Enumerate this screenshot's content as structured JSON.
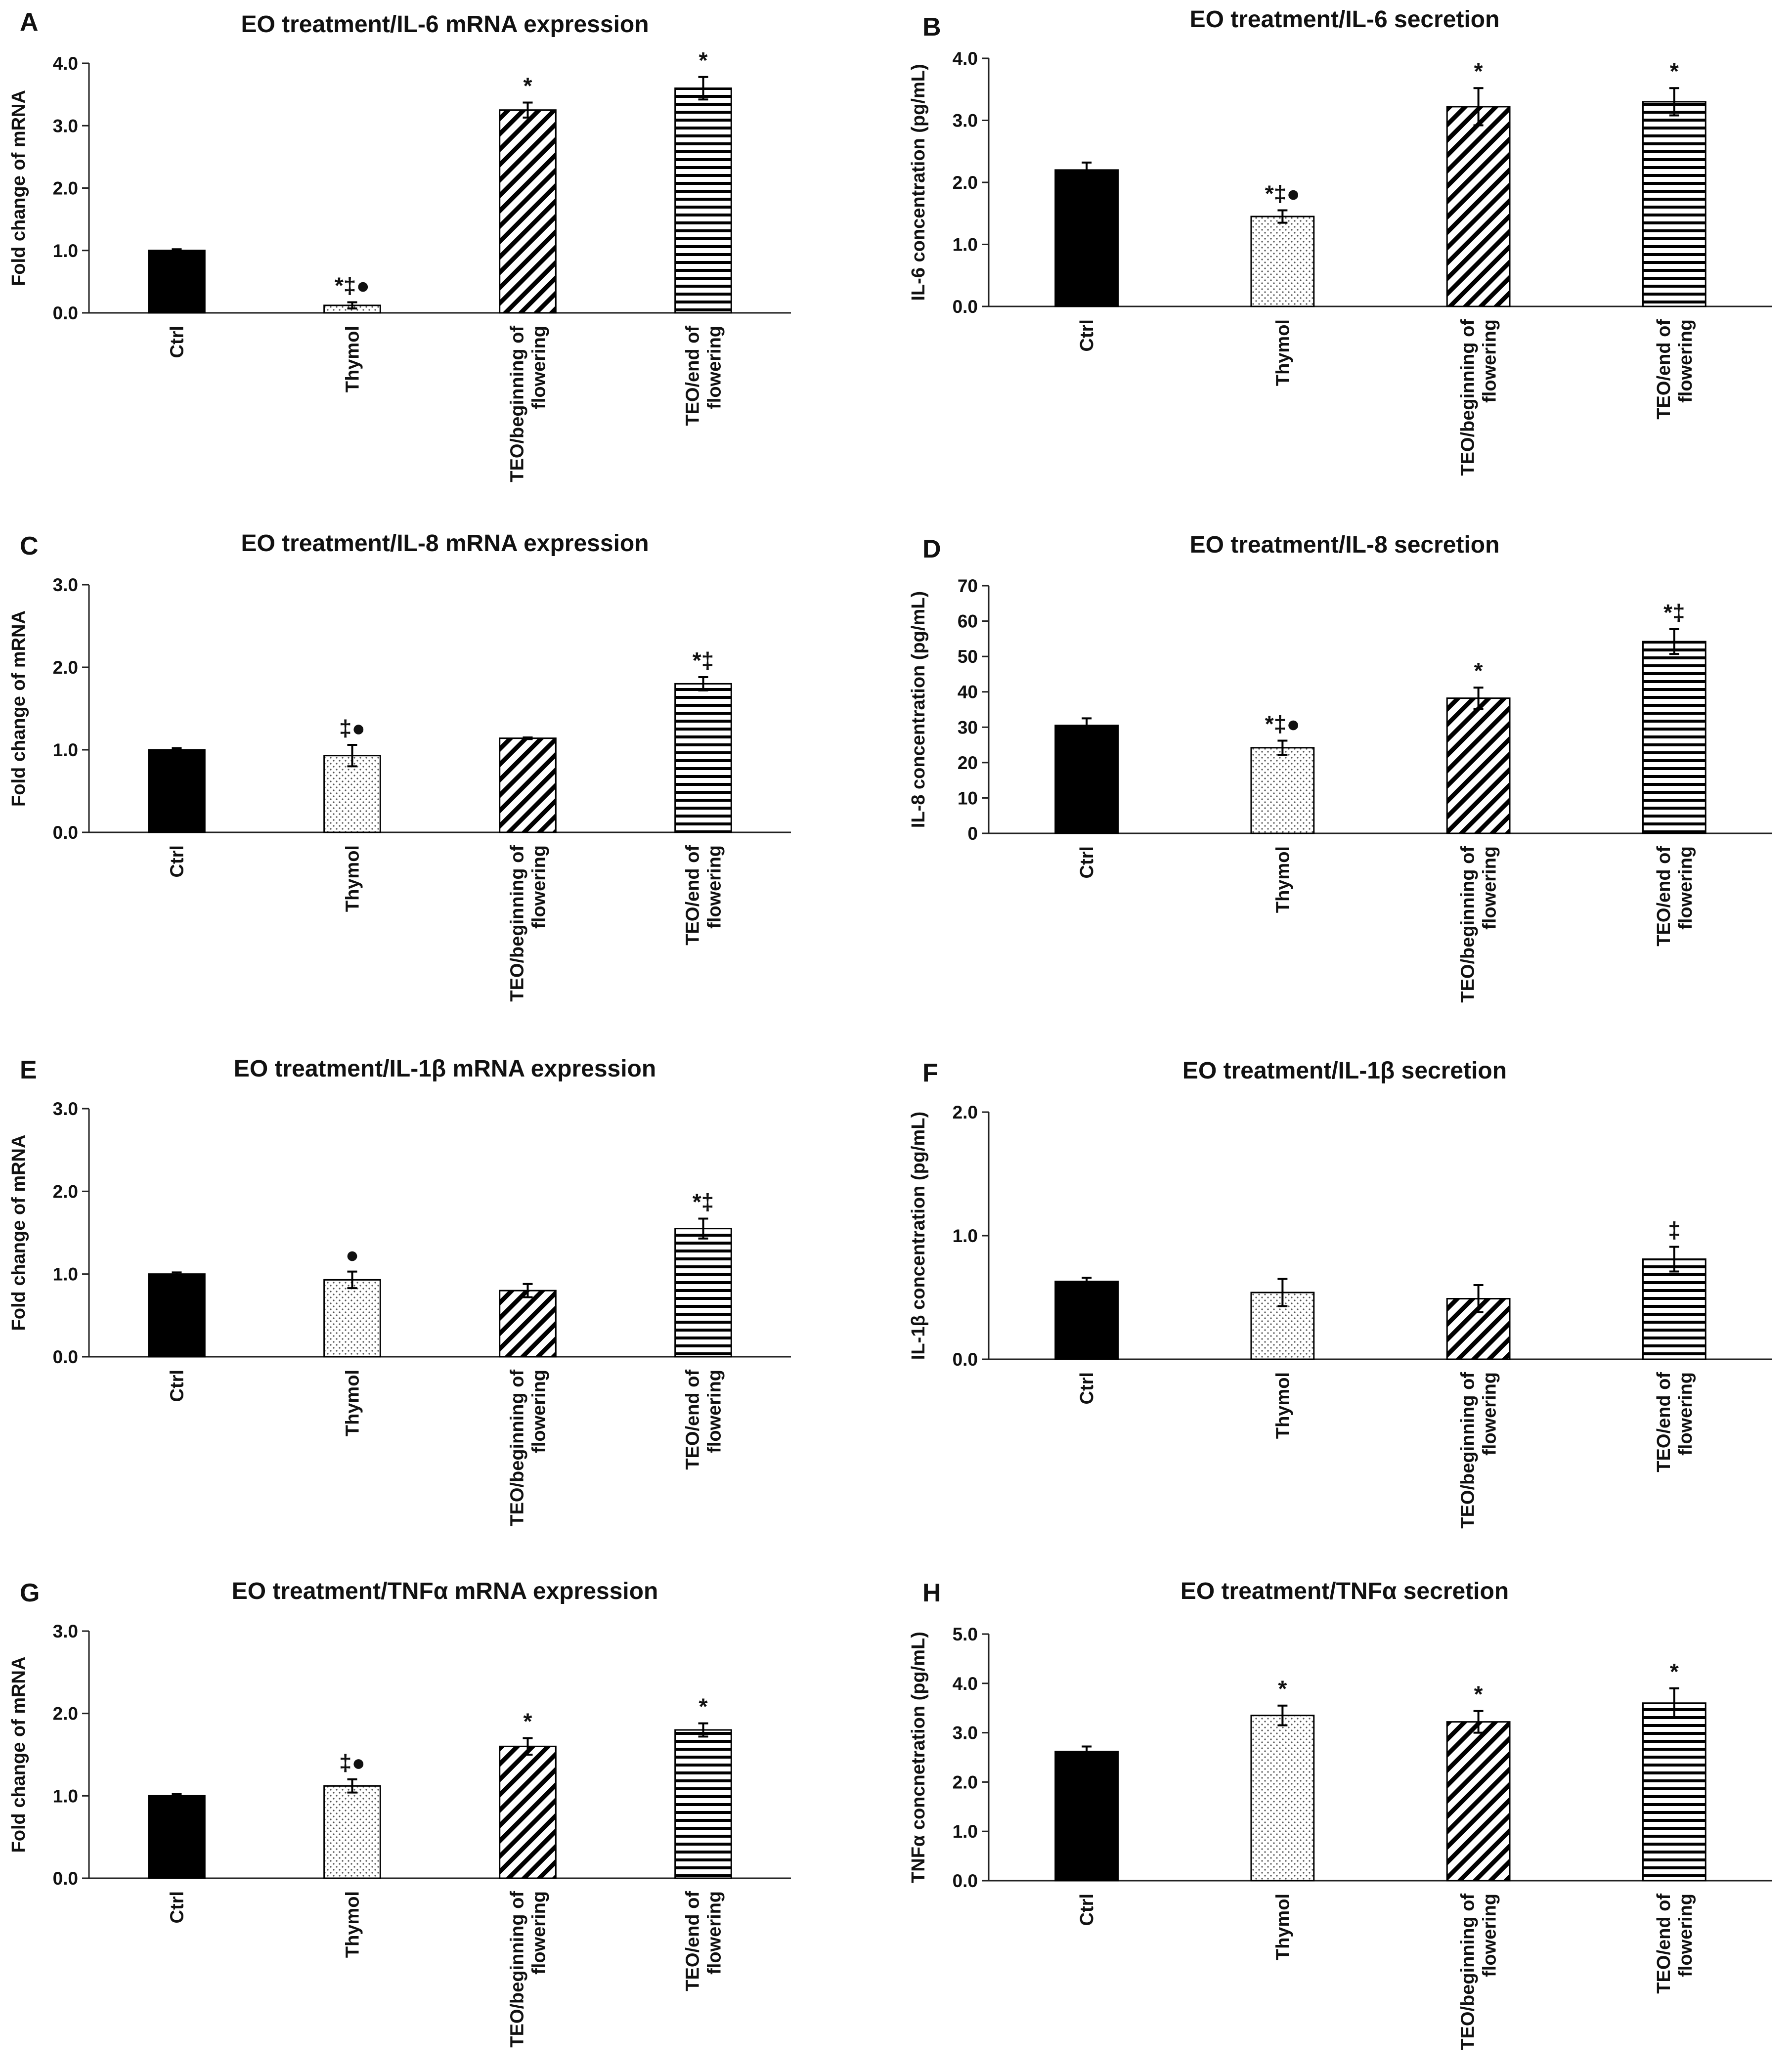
{
  "figure": {
    "panels": [
      {
        "letter": "A",
        "title": "EO treatment/IL-6 mRNA expression",
        "ylabel": "Fold change of mRNA",
        "ymax": 4.0,
        "ystep": 1.0,
        "decimals": 1,
        "categories": [
          [
            "Ctrl"
          ],
          [
            "Thymol"
          ],
          [
            "TEO/beginning of",
            "flowering"
          ],
          [
            "TEO/end of",
            "flowering"
          ]
        ],
        "values": [
          1.0,
          0.12,
          3.25,
          3.6
        ],
        "errors": [
          0.02,
          0.05,
          0.12,
          0.18
        ],
        "annotations": [
          "",
          "*‡●",
          "*",
          "*"
        ]
      },
      {
        "letter": "B",
        "title": "EO treatment/IL-6 secretion",
        "ylabel": "IL-6 concentration (pg/mL)",
        "ymax": 4.0,
        "ystep": 1.0,
        "decimals": 1,
        "categories": [
          [
            "Ctrl"
          ],
          [
            "Thymol"
          ],
          [
            "TEO/beginning of",
            "flowering"
          ],
          [
            "TEO/end of",
            "flowering"
          ]
        ],
        "values": [
          2.2,
          1.45,
          3.22,
          3.3
        ],
        "errors": [
          0.12,
          0.1,
          0.3,
          0.22
        ],
        "annotations": [
          "",
          "*‡●",
          "*",
          "*"
        ]
      },
      {
        "letter": "C",
        "title": "EO treatment/IL-8 mRNA expression",
        "ylabel": "Fold change of mRNA",
        "ymax": 3.0,
        "ystep": 1.0,
        "decimals": 1,
        "categories": [
          [
            "Ctrl"
          ],
          [
            "Thymol"
          ],
          [
            "TEO/beginning of",
            "flowering"
          ],
          [
            "TEO/end of",
            "flowering"
          ]
        ],
        "values": [
          1.0,
          0.93,
          1.14,
          1.8
        ],
        "errors": [
          0.02,
          0.13,
          0.01,
          0.08
        ],
        "annotations": [
          "",
          "‡●",
          "",
          "*‡"
        ]
      },
      {
        "letter": "D",
        "title": "EO treatment/IL-8 secretion",
        "ylabel": "IL-8 concentration (pg/mL)",
        "ymax": 70,
        "ystep": 10,
        "decimals": 0,
        "categories": [
          [
            "Ctrl"
          ],
          [
            "Thymol"
          ],
          [
            "TEO/beginning of",
            "flowering"
          ],
          [
            "TEO/end of",
            "flowering"
          ]
        ],
        "values": [
          30.5,
          24.2,
          38.2,
          54.2
        ],
        "errors": [
          2.0,
          2.0,
          3.0,
          3.5
        ],
        "annotations": [
          "",
          "*‡●",
          "*",
          "*‡"
        ]
      },
      {
        "letter": "E",
        "title": "EO treatment/IL-1β mRNA expression",
        "ylabel": "Fold change of mRNA",
        "ymax": 3.0,
        "ystep": 1.0,
        "decimals": 1,
        "categories": [
          [
            "Ctrl"
          ],
          [
            "Thymol"
          ],
          [
            "TEO/beginning of",
            "flowering"
          ],
          [
            "TEO/end of",
            "flowering"
          ]
        ],
        "values": [
          1.0,
          0.93,
          0.8,
          1.55
        ],
        "errors": [
          0.02,
          0.1,
          0.08,
          0.12
        ],
        "annotations": [
          "",
          "●",
          "",
          "*‡"
        ]
      },
      {
        "letter": "F",
        "title": "EO treatment/IL-1β secretion",
        "ylabel": "IL-1β concentration (pg/mL)",
        "ymax": 2.0,
        "ystep": 1.0,
        "decimals": 1,
        "categories": [
          [
            "Ctrl"
          ],
          [
            "Thymol"
          ],
          [
            "TEO/beginning of",
            "flowering"
          ],
          [
            "TEO/end of",
            "flowering"
          ]
        ],
        "values": [
          0.63,
          0.54,
          0.49,
          0.81
        ],
        "errors": [
          0.03,
          0.11,
          0.11,
          0.1
        ],
        "annotations": [
          "",
          "",
          "",
          "‡"
        ]
      },
      {
        "letter": "G",
        "title": "EO treatment/TNFα mRNA expression",
        "ylabel": "Fold change of mRNA",
        "ymax": 3.0,
        "ystep": 1.0,
        "decimals": 1,
        "categories": [
          [
            "Ctrl"
          ],
          [
            "Thymol"
          ],
          [
            "TEO/beginning of",
            "flowering"
          ],
          [
            "TEO/end of",
            "flowering"
          ]
        ],
        "values": [
          1.0,
          1.12,
          1.6,
          1.8
        ],
        "errors": [
          0.02,
          0.08,
          0.1,
          0.08
        ],
        "annotations": [
          "",
          "‡●",
          "*",
          "*"
        ]
      },
      {
        "letter": "H",
        "title": "EO treatment/TNFα secretion",
        "ylabel": "TNFα concnetration (pg/mL)",
        "ymax": 5.0,
        "ystep": 1.0,
        "decimals": 1,
        "categories": [
          [
            "Ctrl"
          ],
          [
            "Thymol"
          ],
          [
            "TEO/beginning of",
            "flowering"
          ],
          [
            "TEO/end of",
            "flowering"
          ]
        ],
        "values": [
          2.62,
          3.35,
          3.22,
          3.6
        ],
        "errors": [
          0.1,
          0.2,
          0.22,
          0.3
        ],
        "annotations": [
          "",
          "*",
          "*",
          "*"
        ]
      }
    ]
  },
  "chart_data": [
    {
      "type": "bar",
      "title": "EO treatment/IL-6 mRNA expression",
      "xlabel": "",
      "ylabel": "Fold change of mRNA",
      "categories": [
        "Ctrl",
        "Thymol",
        "TEO/beginning of flowering",
        "TEO/end of flowering"
      ],
      "values": [
        1.0,
        0.12,
        3.25,
        3.6
      ],
      "errors": [
        0.02,
        0.05,
        0.12,
        0.18
      ],
      "ylim": [
        0,
        4.0
      ],
      "grid": false
    },
    {
      "type": "bar",
      "title": "EO treatment/IL-6 secretion",
      "xlabel": "",
      "ylabel": "IL-6 concentration (pg/mL)",
      "categories": [
        "Ctrl",
        "Thymol",
        "TEO/beginning of flowering",
        "TEO/end of flowering"
      ],
      "values": [
        2.2,
        1.45,
        3.22,
        3.3
      ],
      "errors": [
        0.12,
        0.1,
        0.3,
        0.22
      ],
      "ylim": [
        0,
        4.0
      ],
      "grid": false
    },
    {
      "type": "bar",
      "title": "EO treatment/IL-8 mRNA expression",
      "xlabel": "",
      "ylabel": "Fold change of mRNA",
      "categories": [
        "Ctrl",
        "Thymol",
        "TEO/beginning of flowering",
        "TEO/end of flowering"
      ],
      "values": [
        1.0,
        0.93,
        1.14,
        1.8
      ],
      "errors": [
        0.02,
        0.13,
        0.01,
        0.08
      ],
      "ylim": [
        0,
        3.0
      ],
      "grid": false
    },
    {
      "type": "bar",
      "title": "EO treatment/IL-8 secretion",
      "xlabel": "",
      "ylabel": "IL-8 concentration (pg/mL)",
      "categories": [
        "Ctrl",
        "Thymol",
        "TEO/beginning of flowering",
        "TEO/end of flowering"
      ],
      "values": [
        30.5,
        24.2,
        38.2,
        54.2
      ],
      "errors": [
        2.0,
        2.0,
        3.0,
        3.5
      ],
      "ylim": [
        0,
        70
      ],
      "grid": false
    },
    {
      "type": "bar",
      "title": "EO treatment/IL-1β mRNA expression",
      "xlabel": "",
      "ylabel": "Fold change of mRNA",
      "categories": [
        "Ctrl",
        "Thymol",
        "TEO/beginning of flowering",
        "TEO/end of flowering"
      ],
      "values": [
        1.0,
        0.93,
        0.8,
        1.55
      ],
      "errors": [
        0.02,
        0.1,
        0.08,
        0.12
      ],
      "ylim": [
        0,
        3.0
      ],
      "grid": false
    },
    {
      "type": "bar",
      "title": "EO treatment/IL-1β secretion",
      "xlabel": "",
      "ylabel": "IL-1β concentration (pg/mL)",
      "categories": [
        "Ctrl",
        "Thymol",
        "TEO/beginning of flowering",
        "TEO/end of flowering"
      ],
      "values": [
        0.63,
        0.54,
        0.49,
        0.81
      ],
      "errors": [
        0.03,
        0.11,
        0.11,
        0.1
      ],
      "ylim": [
        0,
        2.0
      ],
      "grid": false
    },
    {
      "type": "bar",
      "title": "EO treatment/TNFα mRNA expression",
      "xlabel": "",
      "ylabel": "Fold change of mRNA",
      "categories": [
        "Ctrl",
        "Thymol",
        "TEO/beginning of flowering",
        "TEO/end of flowering"
      ],
      "values": [
        1.0,
        1.12,
        1.6,
        1.8
      ],
      "errors": [
        0.02,
        0.08,
        0.1,
        0.08
      ],
      "ylim": [
        0,
        3.0
      ],
      "grid": false
    },
    {
      "type": "bar",
      "title": "EO treatment/TNFα secretion",
      "xlabel": "",
      "ylabel": "TNFα concnetration (pg/mL)",
      "categories": [
        "Ctrl",
        "Thymol",
        "TEO/beginning of flowering",
        "TEO/end of flowering"
      ],
      "values": [
        2.62,
        3.35,
        3.22,
        3.6
      ],
      "errors": [
        0.1,
        0.2,
        0.22,
        0.3
      ],
      "ylim": [
        0,
        5.0
      ],
      "grid": false
    }
  ]
}
